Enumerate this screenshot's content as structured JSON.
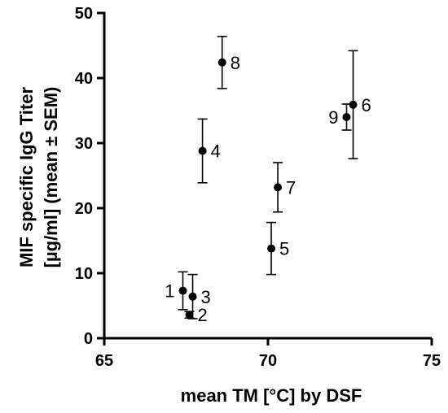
{
  "chart_data": {
    "type": "scatter",
    "xlabel": "mean TM [°C] by DSF",
    "ylabel_line1": "MIF specific IgG Titer",
    "ylabel_line2": "[µg/ml] (mean ± SEM)",
    "xlim": [
      65,
      75
    ],
    "ylim": [
      0,
      50
    ],
    "xticks": [
      65,
      70,
      75
    ],
    "yticks": [
      0,
      10,
      20,
      30,
      40,
      50
    ],
    "points": [
      {
        "label": "1",
        "x": 67.4,
        "y": 7.3,
        "err": 2.9,
        "label_side": "left"
      },
      {
        "label": "2",
        "x": 67.6,
        "y": 3.6,
        "err": 0.5,
        "label_side": "right"
      },
      {
        "label": "3",
        "x": 67.7,
        "y": 6.4,
        "err": 3.4,
        "label_side": "right"
      },
      {
        "label": "4",
        "x": 68.0,
        "y": 28.8,
        "err": 4.9,
        "label_side": "right"
      },
      {
        "label": "5",
        "x": 70.1,
        "y": 13.8,
        "err": 4.0,
        "label_side": "right"
      },
      {
        "label": "6",
        "x": 72.6,
        "y": 35.9,
        "err": 8.3,
        "label_side": "right"
      },
      {
        "label": "7",
        "x": 70.3,
        "y": 23.2,
        "err": 3.8,
        "label_side": "right"
      },
      {
        "label": "8",
        "x": 68.6,
        "y": 42.4,
        "err": 4.0,
        "label_side": "right"
      },
      {
        "label": "9",
        "x": 72.4,
        "y": 34.0,
        "err": 2.0,
        "label_side": "left"
      }
    ]
  }
}
